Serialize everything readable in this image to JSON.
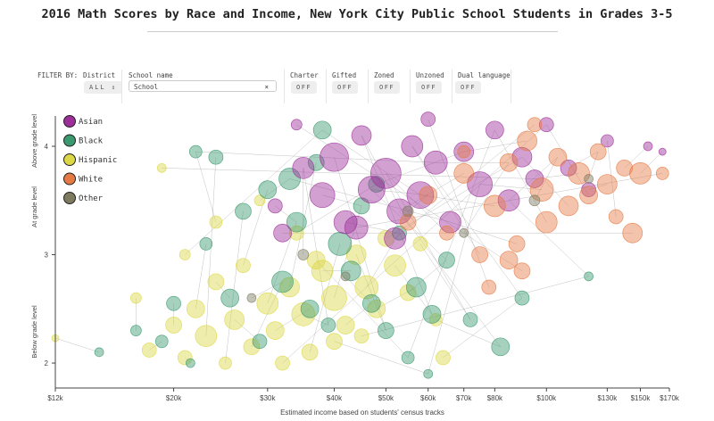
{
  "title": "2016 Math Scores by Race and Income, New York City Public School Students in Grades 3-5",
  "filters": {
    "label": "FILTER BY:",
    "district": {
      "label": "District",
      "value": "ALL"
    },
    "school": {
      "label": "School name",
      "placeholder": "School",
      "clear": "×"
    },
    "toggles": [
      {
        "label": "Charter",
        "value": "OFF"
      },
      {
        "label": "Gifted",
        "value": "OFF"
      },
      {
        "label": "Zoned",
        "value": "OFF"
      },
      {
        "label": "Unzoned",
        "value": "OFF"
      },
      {
        "label": "Dual language",
        "value": "OFF"
      }
    ]
  },
  "chart_data": {
    "type": "scatter",
    "title": "2016 Math Scores by Race and Income, New York City Public School Students in Grades 3-5",
    "xlabel": "Estimated income based on students' census tracks",
    "ylabel_bands": [
      "Above grade level",
      "At grade level",
      "Below grade level"
    ],
    "xscale": "log",
    "xlim": [
      12,
      170
    ],
    "ylim": [
      1.77,
      4.28
    ],
    "xticks": [
      {
        "v": 12,
        "label": "$12k"
      },
      {
        "v": 20,
        "label": "$20k"
      },
      {
        "v": 30,
        "label": "$30k"
      },
      {
        "v": 40,
        "label": "$40k"
      },
      {
        "v": 50,
        "label": "$50k"
      },
      {
        "v": 60,
        "label": "$60k"
      },
      {
        "v": 70,
        "label": "$70k"
      },
      {
        "v": 80,
        "label": "$80k"
      },
      {
        "v": 100,
        "label": "$100k"
      },
      {
        "v": 130,
        "label": "$130k"
      },
      {
        "v": 150,
        "label": "$150k"
      },
      {
        "v": 170,
        "label": "$170k"
      }
    ],
    "yticks": [
      {
        "v": 2,
        "label": "2"
      },
      {
        "v": 3,
        "label": "3"
      },
      {
        "v": 4,
        "label": "4"
      }
    ],
    "legend_position": "top-left",
    "series": [
      {
        "name": "Asian",
        "color": "#9c2f98"
      },
      {
        "name": "Black",
        "color": "#3a9a6e"
      },
      {
        "name": "Hispanic",
        "color": "#dcd845"
      },
      {
        "name": "White",
        "color": "#e67a45"
      },
      {
        "name": "Other",
        "color": "#7d7a60"
      }
    ],
    "points_note": "[series, income_k, score, size, school]",
    "points": [
      [
        "Hispanic",
        12,
        2.23,
        4,
        1
      ],
      [
        "Black",
        14.5,
        2.1,
        5,
        1
      ],
      [
        "Hispanic",
        18,
        2.12,
        8,
        2
      ],
      [
        "Black",
        19,
        2.2,
        7,
        2
      ],
      [
        "Hispanic",
        17,
        2.6,
        6,
        3
      ],
      [
        "Hispanic",
        20,
        2.35,
        9,
        4
      ],
      [
        "Hispanic",
        21,
        2.05,
        8,
        5
      ],
      [
        "Hispanic",
        22,
        2.5,
        10,
        6
      ],
      [
        "Hispanic",
        23,
        2.25,
        12,
        7
      ],
      [
        "Hispanic",
        24,
        2.75,
        9,
        8
      ],
      [
        "Hispanic",
        25,
        2.0,
        7,
        9
      ],
      [
        "Hispanic",
        26,
        2.4,
        11,
        10
      ],
      [
        "Hispanic",
        27,
        2.9,
        8,
        11
      ],
      [
        "Hispanic",
        28,
        2.15,
        9,
        12
      ],
      [
        "Hispanic",
        30,
        2.55,
        12,
        13
      ],
      [
        "Hispanic",
        31,
        2.3,
        10,
        14
      ],
      [
        "Hispanic",
        33,
        2.7,
        11,
        15
      ],
      [
        "Hispanic",
        35,
        2.45,
        13,
        16
      ],
      [
        "Hispanic",
        36,
        2.1,
        9,
        17
      ],
      [
        "Hispanic",
        38,
        2.85,
        12,
        18
      ],
      [
        "Hispanic",
        40,
        2.6,
        14,
        19
      ],
      [
        "Hispanic",
        42,
        2.35,
        10,
        20
      ],
      [
        "Hispanic",
        44,
        3.0,
        11,
        21
      ],
      [
        "Hispanic",
        46,
        2.7,
        13,
        22
      ],
      [
        "Hispanic",
        48,
        2.5,
        10,
        23
      ],
      [
        "Hispanic",
        52,
        2.9,
        12,
        24
      ],
      [
        "Hispanic",
        55,
        2.65,
        9,
        25
      ],
      [
        "Hispanic",
        58,
        3.1,
        8,
        26
      ],
      [
        "Hispanic",
        62,
        2.4,
        7,
        27
      ],
      [
        "Hispanic",
        64,
        2.05,
        8,
        28
      ],
      [
        "Hispanic",
        21,
        3.0,
        6,
        29
      ],
      [
        "Hispanic",
        24,
        3.3,
        7,
        30
      ],
      [
        "Hispanic",
        29,
        3.5,
        6,
        31
      ],
      [
        "Hispanic",
        34,
        3.2,
        8,
        32
      ],
      [
        "Hispanic",
        40,
        2.2,
        9,
        33
      ],
      [
        "Hispanic",
        37,
        2.95,
        10,
        34
      ],
      [
        "Hispanic",
        45,
        2.25,
        8,
        35
      ],
      [
        "Hispanic",
        50,
        3.15,
        9,
        36
      ],
      [
        "Hispanic",
        19,
        3.8,
        5,
        37
      ],
      [
        "Hispanic",
        32,
        2.0,
        8,
        38
      ],
      [
        "Black",
        17,
        2.3,
        6,
        3
      ],
      [
        "Black",
        20,
        2.55,
        8,
        4
      ],
      [
        "Black",
        21.5,
        2.0,
        5,
        5
      ],
      [
        "Black",
        23,
        3.1,
        7,
        6
      ],
      [
        "Black",
        24,
        3.9,
        8,
        7
      ],
      [
        "Black",
        25.5,
        2.6,
        10,
        8
      ],
      [
        "Black",
        27,
        3.4,
        9,
        9
      ],
      [
        "Black",
        29,
        2.2,
        8,
        10
      ],
      [
        "Black",
        30,
        3.6,
        10,
        11
      ],
      [
        "Black",
        32,
        2.75,
        12,
        12
      ],
      [
        "Black",
        34,
        3.3,
        11,
        13
      ],
      [
        "Black",
        36,
        2.5,
        10,
        14
      ],
      [
        "Black",
        37,
        3.85,
        9,
        15
      ],
      [
        "Black",
        39,
        2.35,
        8,
        16
      ],
      [
        "Black",
        41,
        3.1,
        13,
        17
      ],
      [
        "Black",
        43,
        2.85,
        11,
        18
      ],
      [
        "Black",
        45,
        3.45,
        9,
        19
      ],
      [
        "Black",
        47,
        2.55,
        10,
        20
      ],
      [
        "Black",
        50,
        2.3,
        9,
        21
      ],
      [
        "Black",
        53,
        3.2,
        8,
        22
      ],
      [
        "Black",
        57,
        2.7,
        11,
        23
      ],
      [
        "Black",
        61,
        2.45,
        10,
        24
      ],
      [
        "Black",
        65,
        2.95,
        9,
        25
      ],
      [
        "Black",
        72,
        2.4,
        8,
        26
      ],
      [
        "Black",
        82,
        2.15,
        10,
        27
      ],
      [
        "Black",
        90,
        2.6,
        8,
        28
      ],
      [
        "Black",
        38,
        4.15,
        10,
        29
      ],
      [
        "Black",
        22,
        3.95,
        7,
        30
      ],
      [
        "Black",
        33,
        3.7,
        12,
        31
      ],
      [
        "Black",
        48,
        3.65,
        9,
        32
      ],
      [
        "Black",
        60,
        1.9,
        5,
        33
      ],
      [
        "Black",
        55,
        2.05,
        7,
        34
      ],
      [
        "Black",
        120,
        2.8,
        5,
        35
      ],
      [
        "Asian",
        31,
        3.45,
        8,
        13
      ],
      [
        "Asian",
        35,
        3.8,
        12,
        16
      ],
      [
        "Asian",
        38,
        3.55,
        14,
        19
      ],
      [
        "Asian",
        40,
        3.9,
        16,
        21
      ],
      [
        "Asian",
        42,
        3.3,
        13,
        22
      ],
      [
        "Asian",
        45,
        4.1,
        11,
        24
      ],
      [
        "Asian",
        47,
        3.6,
        15,
        25
      ],
      [
        "Asian",
        50,
        3.75,
        17,
        26
      ],
      [
        "Asian",
        53,
        3.4,
        14,
        27
      ],
      [
        "Asian",
        56,
        4.0,
        12,
        28
      ],
      [
        "Asian",
        58,
        3.55,
        15,
        29
      ],
      [
        "Asian",
        62,
        3.85,
        13,
        30
      ],
      [
        "Asian",
        66,
        3.3,
        12,
        31
      ],
      [
        "Asian",
        70,
        3.95,
        11,
        32
      ],
      [
        "Asian",
        75,
        3.65,
        14,
        33
      ],
      [
        "Asian",
        80,
        4.15,
        10,
        34
      ],
      [
        "Asian",
        85,
        3.5,
        12,
        35
      ],
      [
        "Asian",
        90,
        3.9,
        11,
        36
      ],
      [
        "Asian",
        95,
        3.7,
        10,
        37
      ],
      [
        "Asian",
        100,
        4.2,
        8,
        38
      ],
      [
        "Asian",
        110,
        3.8,
        9,
        40
      ],
      [
        "Asian",
        120,
        3.6,
        8,
        41
      ],
      [
        "Asian",
        130,
        4.05,
        7,
        42
      ],
      [
        "Asian",
        155,
        4.0,
        5,
        43
      ],
      [
        "Asian",
        165,
        3.95,
        4,
        44
      ],
      [
        "Asian",
        32,
        3.2,
        10,
        45
      ],
      [
        "Asian",
        44,
        3.25,
        13,
        46
      ],
      [
        "Asian",
        60,
        4.25,
        8,
        47
      ],
      [
        "Asian",
        34,
        4.2,
        6,
        48
      ],
      [
        "Asian",
        52,
        3.15,
        12,
        49
      ],
      [
        "White",
        55,
        3.3,
        9,
        24
      ],
      [
        "White",
        60,
        3.55,
        10,
        25
      ],
      [
        "White",
        65,
        3.2,
        8,
        26
      ],
      [
        "White",
        70,
        3.75,
        11,
        27
      ],
      [
        "White",
        75,
        3.0,
        9,
        28
      ],
      [
        "White",
        80,
        3.45,
        12,
        29
      ],
      [
        "White",
        85,
        3.85,
        10,
        30
      ],
      [
        "White",
        88,
        3.1,
        9,
        31
      ],
      [
        "White",
        92,
        4.05,
        11,
        32
      ],
      [
        "White",
        98,
        3.6,
        13,
        33
      ],
      [
        "White",
        100,
        3.3,
        12,
        34
      ],
      [
        "White",
        105,
        3.9,
        10,
        35
      ],
      [
        "White",
        110,
        3.45,
        11,
        36
      ],
      [
        "White",
        115,
        3.75,
        12,
        37
      ],
      [
        "White",
        120,
        3.55,
        10,
        38
      ],
      [
        "White",
        125,
        3.95,
        9,
        40
      ],
      [
        "White",
        130,
        3.65,
        11,
        41
      ],
      [
        "White",
        135,
        3.35,
        8,
        42
      ],
      [
        "White",
        140,
        3.8,
        9,
        43
      ],
      [
        "White",
        150,
        3.75,
        12,
        44
      ],
      [
        "White",
        145,
        3.2,
        11,
        45
      ],
      [
        "White",
        165,
        3.75,
        7,
        46
      ],
      [
        "White",
        78,
        2.7,
        8,
        47
      ],
      [
        "White",
        90,
        2.85,
        9,
        48
      ],
      [
        "White",
        95,
        4.2,
        8,
        49
      ],
      [
        "White",
        70,
        3.95,
        7,
        50
      ],
      [
        "White",
        85,
        2.95,
        10,
        51
      ],
      [
        "Other",
        35,
        3.0,
        6,
        16
      ],
      [
        "Other",
        42,
        2.8,
        5,
        20
      ],
      [
        "Other",
        55,
        3.4,
        6,
        25
      ],
      [
        "Other",
        70,
        3.2,
        5,
        30
      ],
      [
        "Other",
        95,
        3.5,
        6,
        35
      ],
      [
        "Other",
        120,
        3.7,
        5,
        40
      ],
      [
        "Other",
        28,
        2.6,
        5,
        12
      ]
    ]
  }
}
